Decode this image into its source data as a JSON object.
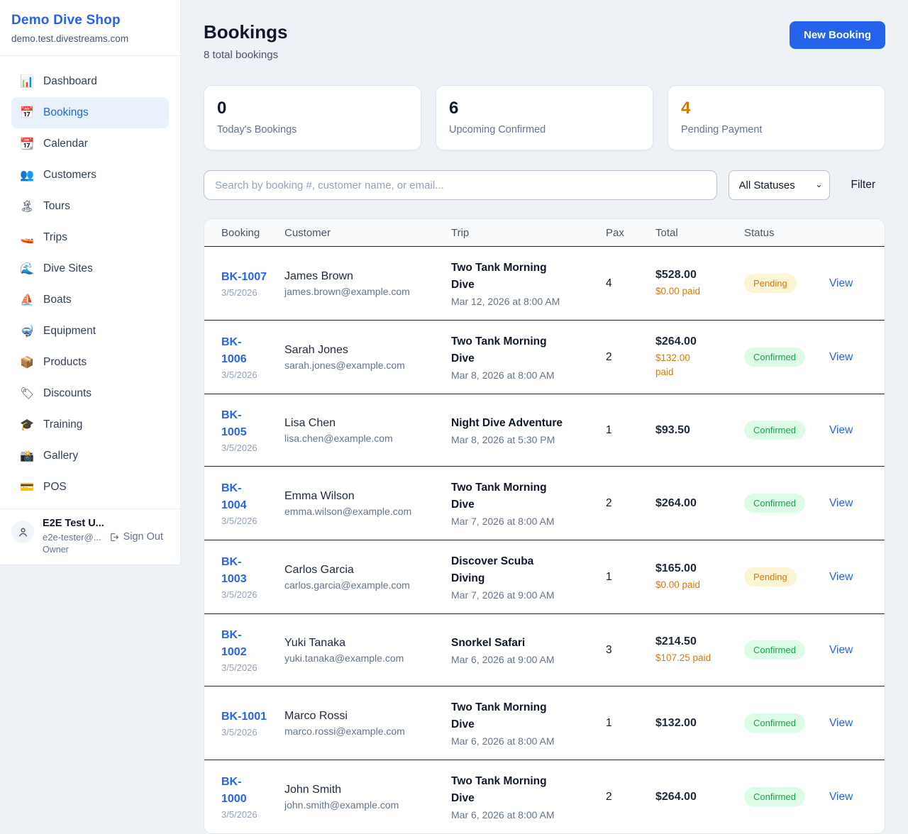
{
  "sidebar": {
    "brand": "Demo Dive Shop",
    "domain": "demo.test.divestreams.com",
    "items": [
      {
        "label": "Dashboard",
        "icon": "📊",
        "icon_name": "bar-chart-icon",
        "active": false
      },
      {
        "label": "Bookings",
        "icon": "📅",
        "icon_name": "calendar-icon",
        "active": true
      },
      {
        "label": "Calendar",
        "icon": "📆",
        "icon_name": "tearoff-calendar-icon",
        "active": false
      },
      {
        "label": "Customers",
        "icon": "👥",
        "icon_name": "people-icon",
        "active": false
      },
      {
        "label": "Tours",
        "icon": "🏝",
        "icon_name": "island-icon",
        "active": false
      },
      {
        "label": "Trips",
        "icon": "🚤",
        "icon_name": "speedboat-icon",
        "active": false
      },
      {
        "label": "Dive Sites",
        "icon": "🌊",
        "icon_name": "wave-icon",
        "active": false
      },
      {
        "label": "Boats",
        "icon": "⛵",
        "icon_name": "sailboat-icon",
        "active": false
      },
      {
        "label": "Equipment",
        "icon": "🤿",
        "icon_name": "diving-mask-icon",
        "active": false
      },
      {
        "label": "Products",
        "icon": "📦",
        "icon_name": "package-icon",
        "active": false
      },
      {
        "label": "Discounts",
        "icon": "🏷",
        "icon_name": "tag-icon",
        "active": false
      },
      {
        "label": "Training",
        "icon": "🎓",
        "icon_name": "graduation-cap-icon",
        "active": false
      },
      {
        "label": "Gallery",
        "icon": "📸",
        "icon_name": "camera-icon",
        "active": false
      },
      {
        "label": "POS",
        "icon": "💳",
        "icon_name": "credit-card-icon",
        "active": false
      }
    ],
    "user": {
      "name": "E2E Test U...",
      "email": "e2e-tester@...",
      "role": "Owner",
      "sign_out_label": "Sign Out"
    }
  },
  "header": {
    "title": "Bookings",
    "subtitle": "8 total bookings",
    "new_booking_label": "New Booking"
  },
  "stats": [
    {
      "value": "0",
      "label": "Today's Bookings",
      "highlight": false
    },
    {
      "value": "6",
      "label": "Upcoming Confirmed",
      "highlight": false
    },
    {
      "value": "4",
      "label": "Pending Payment",
      "highlight": true
    }
  ],
  "filters": {
    "search_placeholder": "Search by booking #, customer name, or email...",
    "search_value": "",
    "status_selected": "All Statuses",
    "filter_label": "Filter"
  },
  "table": {
    "columns": [
      "Booking",
      "Customer",
      "Trip",
      "Pax",
      "Total",
      "Status"
    ],
    "rows": [
      {
        "id": "BK-1007",
        "date": "3/5/2026",
        "name": "James Brown",
        "email": "james.brown@example.com",
        "trip": "Two Tank Morning\nDive",
        "datetime": "Mar 12, 2026 at 8:00 AM",
        "pax": "4",
        "total": "$528.00",
        "paid": "$0.00 paid",
        "status": "Pending",
        "action": "View"
      },
      {
        "id": "BK-\n1006",
        "date": "3/5/2026",
        "name": "Sarah Jones",
        "email": "sarah.jones@example.com",
        "trip": "Two Tank Morning\nDive",
        "datetime": "Mar 8, 2026 at 8:00 AM",
        "pax": "2",
        "total": "$264.00",
        "paid": "$132.00\npaid",
        "status": "Confirmed",
        "action": "View"
      },
      {
        "id": "BK-\n1005",
        "date": "3/5/2026",
        "name": "Lisa Chen",
        "email": "lisa.chen@example.com",
        "trip": "Night Dive Adventure",
        "datetime": "Mar 8, 2026 at 5:30 PM",
        "pax": "1",
        "total": "$93.50",
        "paid": null,
        "status": "Confirmed",
        "action": "View"
      },
      {
        "id": "BK-\n1004",
        "date": "3/5/2026",
        "name": "Emma Wilson",
        "email": "emma.wilson@example.com",
        "trip": "Two Tank Morning\nDive",
        "datetime": "Mar 7, 2026 at 8:00 AM",
        "pax": "2",
        "total": "$264.00",
        "paid": null,
        "status": "Confirmed",
        "action": "View"
      },
      {
        "id": "BK-\n1003",
        "date": "3/5/2026",
        "name": "Carlos Garcia",
        "email": "carlos.garcia@example.com",
        "trip": "Discover Scuba\nDiving",
        "datetime": "Mar 7, 2026 at 9:00 AM",
        "pax": "1",
        "total": "$165.00",
        "paid": "$0.00 paid",
        "status": "Pending",
        "action": "View"
      },
      {
        "id": "BK-\n1002",
        "date": "3/5/2026",
        "name": "Yuki Tanaka",
        "email": "yuki.tanaka@example.com",
        "trip": "Snorkel Safari",
        "datetime": "Mar 6, 2026 at 9:00 AM",
        "pax": "3",
        "total": "$214.50",
        "paid": "$107.25 paid",
        "status": "Confirmed",
        "action": "View"
      },
      {
        "id": "BK-1001",
        "date": "3/5/2026",
        "name": "Marco Rossi",
        "email": "marco.rossi@example.com",
        "trip": "Two Tank Morning\nDive",
        "datetime": "Mar 6, 2026 at 8:00 AM",
        "pax": "1",
        "total": "$132.00",
        "paid": null,
        "status": "Confirmed",
        "action": "View"
      },
      {
        "id": "BK-\n1000",
        "date": "3/5/2026",
        "name": "John Smith",
        "email": "john.smith@example.com",
        "trip": "Two Tank Morning\nDive",
        "datetime": "Mar 6, 2026 at 8:00 AM",
        "pax": "2",
        "total": "$264.00",
        "paid": null,
        "status": "Confirmed",
        "action": "View"
      }
    ]
  },
  "colors": {
    "accent": "#2563eb",
    "pending_text": "#d97706",
    "pending_bg": "#fdf3d5",
    "confirmed_text": "#16a34a",
    "confirmed_bg": "#dcfce7",
    "page_bg": "#eef1f6"
  }
}
